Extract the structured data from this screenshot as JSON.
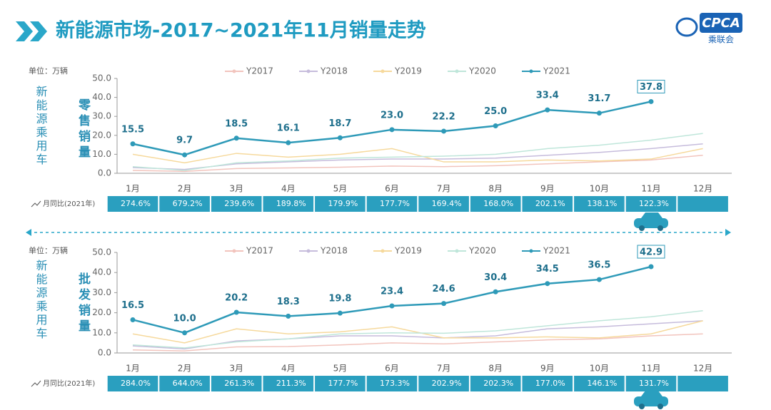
{
  "header": {
    "title": "新能源市场-2017~2021年11月销量走势",
    "logo": "CPCA",
    "logo_sub": "乘联会"
  },
  "chart_data": [
    {
      "type": "line",
      "unit": "单位：万辆",
      "side_label": "新能源乘用车",
      "title": "零售销量",
      "categories": [
        "1月",
        "2月",
        "3月",
        "4月",
        "5月",
        "6月",
        "7月",
        "8月",
        "9月",
        "10月",
        "11月",
        "12月"
      ],
      "ylim": [
        0,
        50
      ],
      "yticks": [
        {
          "value": 0,
          "label": "0.0"
        },
        {
          "value": 10,
          "label": "10.0"
        },
        {
          "value": 20,
          "label": "20.0"
        },
        {
          "value": 30,
          "label": "30.0"
        },
        {
          "value": 40,
          "label": "40.0"
        },
        {
          "value": 50,
          "label": "50.0"
        }
      ],
      "series": [
        {
          "name": "Y2017",
          "color": "#f2c4bd",
          "values": [
            1.5,
            1,
            2.5,
            2.8,
            3.2,
            3.8,
            3.5,
            4,
            5,
            6,
            7,
            9.5
          ]
        },
        {
          "name": "Y2018",
          "color": "#c6bcdc",
          "values": [
            3,
            2,
            5,
            6,
            7,
            7.5,
            7.5,
            8,
            9.5,
            11,
            13,
            15.5
          ]
        },
        {
          "name": "Y2019",
          "color": "#f6d99c",
          "values": [
            10,
            5.5,
            10.5,
            8.5,
            10,
            13,
            6,
            6,
            7,
            6.5,
            7.5,
            13
          ]
        },
        {
          "name": "Y2020",
          "color": "#bfe6da",
          "values": [
            3.5,
            1.5,
            5.5,
            6.5,
            8,
            8.5,
            9,
            10,
            13,
            14.8,
            17.5,
            21
          ]
        },
        {
          "name": "Y2021",
          "color": "#2e9ab8",
          "values": [
            15.5,
            9.7,
            18.5,
            16.1,
            18.7,
            23,
            22.2,
            25,
            33.4,
            31.7,
            37.8,
            null
          ],
          "value_labels": [
            "15.5",
            "9.7",
            "18.5",
            "16.1",
            "18.7",
            "23.0",
            "22.2",
            "25.0",
            "33.4",
            "31.7",
            "37.8",
            null
          ]
        }
      ],
      "yoy_label": "月同比(2021年)",
      "yoy": [
        "274.6%",
        "679.2%",
        "239.6%",
        "189.8%",
        "179.9%",
        "177.7%",
        "169.4%",
        "168.0%",
        "202.1%",
        "138.1%",
        "122.3%"
      ]
    },
    {
      "type": "line",
      "unit": "单位：万辆",
      "side_label": "新能源乘用车",
      "title": "批发销量",
      "categories": [
        "1月",
        "2月",
        "3月",
        "4月",
        "5月",
        "6月",
        "7月",
        "8月",
        "9月",
        "10月",
        "11月",
        "12月"
      ],
      "ylim": [
        0,
        50
      ],
      "yticks": [
        {
          "value": 0,
          "label": "0.0"
        },
        {
          "value": 10,
          "label": "10.0"
        },
        {
          "value": 20,
          "label": "20.0"
        },
        {
          "value": 30,
          "label": "30.0"
        },
        {
          "value": 40,
          "label": "40.0"
        },
        {
          "value": 50,
          "label": "50.0"
        }
      ],
      "series": [
        {
          "name": "Y2017",
          "color": "#f2c4bd",
          "values": [
            1.5,
            1,
            3,
            3.2,
            4,
            5,
            4.5,
            5.5,
            6.5,
            7,
            8.5,
            9.5
          ]
        },
        {
          "name": "Y2018",
          "color": "#c6bcdc",
          "values": [
            3.5,
            2,
            6,
            7,
            8.5,
            8.5,
            7.5,
            8.5,
            12,
            13,
            14.5,
            16
          ]
        },
        {
          "name": "Y2019",
          "color": "#f6d99c",
          "values": [
            9.5,
            5,
            12,
            9.5,
            10.5,
            13,
            7.5,
            7.5,
            8,
            7.5,
            9.5,
            16
          ]
        },
        {
          "name": "Y2020",
          "color": "#bfe6da",
          "values": [
            4,
            2.5,
            5.5,
            7,
            9.5,
            10,
            9.8,
            11,
            13.5,
            16,
            18,
            21
          ]
        },
        {
          "name": "Y2021",
          "color": "#2e9ab8",
          "values": [
            16.5,
            10,
            20.2,
            18.3,
            19.8,
            23.4,
            24.6,
            30.4,
            34.5,
            36.5,
            42.9,
            null
          ],
          "value_labels": [
            "16.5",
            "10.0",
            "20.2",
            "18.3",
            "19.8",
            "23.4",
            "24.6",
            "30.4",
            "34.5",
            "36.5",
            "42.9",
            null
          ]
        }
      ],
      "yoy_label": "月同比(2021年)",
      "yoy": [
        "284.0%",
        "644.0%",
        "261.3%",
        "211.3%",
        "177.7%",
        "173.3%",
        "202.9%",
        "202.3%",
        "177.0%",
        "146.1%",
        "131.7%"
      ]
    }
  ]
}
